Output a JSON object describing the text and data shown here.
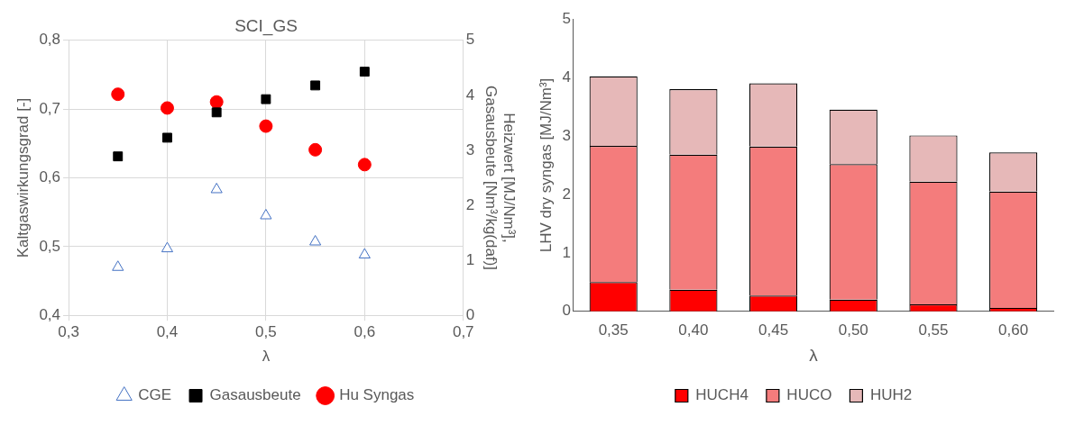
{
  "chart_data": [
    {
      "type": "scatter",
      "title": "SCI_GS",
      "xlabel": "λ",
      "ylabel": "Kaltgaswirkungsgrad [-]",
      "y2label": "Heizwert [MJ/Nm³],\nGasausbeute [Nm³/kg(daf)]",
      "x": [
        0.35,
        0.4,
        0.45,
        0.5,
        0.55,
        0.6
      ],
      "xlim": [
        0.3,
        0.7
      ],
      "xticks": [
        {
          "value": 0.3,
          "label": "0,3"
        },
        {
          "value": 0.4,
          "label": "0,4"
        },
        {
          "value": 0.5,
          "label": "0,5"
        },
        {
          "value": 0.6,
          "label": "0,6"
        },
        {
          "value": 0.7,
          "label": "0,7"
        }
      ],
      "ylim": [
        0.4,
        0.8
      ],
      "yticks": [
        {
          "value": 0.4,
          "label": "0,4"
        },
        {
          "value": 0.5,
          "label": "0,5"
        },
        {
          "value": 0.6,
          "label": "0,6"
        },
        {
          "value": 0.7,
          "label": "0,7"
        },
        {
          "value": 0.8,
          "label": "0,8"
        }
      ],
      "y2lim": [
        0,
        5
      ],
      "y2ticks": [
        0,
        1,
        2,
        3,
        4,
        5
      ],
      "grid": true,
      "legend": "bottom",
      "series": [
        {
          "name": "CGE",
          "color": "#4472c4",
          "marker": "triangle",
          "values": [
            0.47,
            0.497,
            0.583,
            0.545,
            0.507,
            0.488
          ]
        },
        {
          "name": "Gasausbeute",
          "color": "#000000",
          "marker": "square",
          "axis": "y2",
          "values": [
            2.89,
            3.23,
            3.69,
            3.93,
            4.18,
            4.43
          ]
        },
        {
          "name": "Hu Syngas",
          "color": "#ff0000",
          "marker": "circle",
          "axis": "y2",
          "values": [
            4.02,
            3.77,
            3.88,
            3.44,
            3.01,
            2.74
          ]
        }
      ]
    },
    {
      "type": "bar",
      "stacked": true,
      "xlabel": "λ",
      "ylabel": "LHV dry syngas [MJ/Nm³]",
      "categories": [
        "0,35",
        "0,40",
        "0,45",
        "0,50",
        "0,55",
        "0,60"
      ],
      "ylim": [
        0,
        5
      ],
      "yticks": [
        0,
        1,
        2,
        3,
        4,
        5
      ],
      "grid": false,
      "legend": "bottom",
      "series": [
        {
          "name": "HUCH4",
          "color": "#ff0000",
          "values": [
            0.5,
            0.37,
            0.27,
            0.2,
            0.12,
            0.06
          ]
        },
        {
          "name": "HUCO",
          "color": "#f47c7c",
          "values": [
            2.33,
            2.31,
            2.55,
            2.32,
            2.1,
            1.99
          ]
        },
        {
          "name": "HUH2",
          "color": "#e6b8b8",
          "values": [
            1.19,
            1.12,
            1.08,
            0.93,
            0.79,
            0.67
          ]
        }
      ]
    }
  ]
}
